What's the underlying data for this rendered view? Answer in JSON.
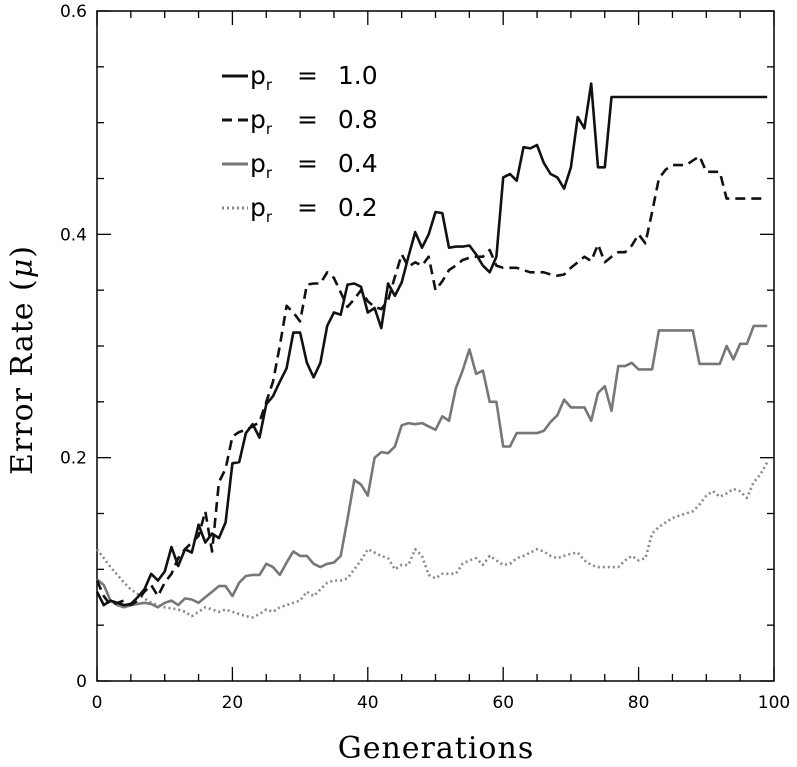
{
  "chart_data": {
    "type": "line",
    "title": "",
    "xlabel": "Generations",
    "ylabel_main": "Error Rate (",
    "ylabel_symbol": "μ",
    "ylabel_close": ")",
    "xlim": [
      0,
      100
    ],
    "ylim": [
      0,
      0.6
    ],
    "x_ticks": [
      0,
      20,
      40,
      60,
      80,
      100
    ],
    "x_tick_labels": [
      "0",
      "20",
      "40",
      "60",
      "80",
      "100"
    ],
    "y_ticks": [
      0,
      0.2,
      0.4,
      0.6
    ],
    "y_tick_labels": [
      "0",
      "0.2",
      "0.4",
      "0.6"
    ],
    "grid": false,
    "legend_position": "top-left",
    "legend_symbol": "p",
    "legend_subscript": "r",
    "series": [
      {
        "name": "p_r = 1.0",
        "label_main": "p",
        "label_sub": "r",
        "label_value": "= 1.0",
        "color": "#111111",
        "dash": "solid",
        "values": [
          0.08,
          0.068,
          0.072,
          0.07,
          0.068,
          0.069,
          0.075,
          0.082,
          0.096,
          0.09,
          0.098,
          0.12,
          0.103,
          0.118,
          0.115,
          0.14,
          0.124,
          0.132,
          0.128,
          0.142,
          0.195,
          0.196,
          0.222,
          0.23,
          0.218,
          0.248,
          0.255,
          0.268,
          0.28,
          0.312,
          0.312,
          0.285,
          0.272,
          0.285,
          0.318,
          0.33,
          0.328,
          0.355,
          0.356,
          0.353,
          0.33,
          0.334,
          0.316,
          0.356,
          0.345,
          0.357,
          0.38,
          0.402,
          0.388,
          0.4,
          0.42,
          0.419,
          0.388,
          0.389,
          0.389,
          0.39,
          0.382,
          0.372,
          0.366,
          0.38,
          0.451,
          0.454,
          0.448,
          0.478,
          0.477,
          0.48,
          0.464,
          0.454,
          0.451,
          0.441,
          0.46,
          0.505,
          0.495,
          0.535,
          0.46,
          0.46,
          0.523,
          0.523,
          0.523,
          0.523,
          0.523,
          0.523,
          0.523,
          0.523,
          0.523,
          0.523,
          0.523,
          0.523,
          0.523,
          0.523,
          0.523,
          0.523,
          0.523,
          0.523,
          0.523,
          0.523,
          0.523,
          0.523,
          0.523,
          0.523
        ]
      },
      {
        "name": "p_r = 0.8",
        "label_main": "p",
        "label_sub": "r",
        "label_value": "= 0.8",
        "color": "#111111",
        "dash": "dashed",
        "values": [
          0.09,
          0.076,
          0.068,
          0.07,
          0.072,
          0.068,
          0.072,
          0.08,
          0.086,
          0.076,
          0.088,
          0.096,
          0.11,
          0.118,
          0.124,
          0.13,
          0.152,
          0.116,
          0.178,
          0.19,
          0.219,
          0.223,
          0.225,
          0.228,
          0.232,
          0.25,
          0.268,
          0.3,
          0.336,
          0.33,
          0.322,
          0.355,
          0.356,
          0.356,
          0.366,
          0.361,
          0.348,
          0.335,
          0.342,
          0.35,
          0.34,
          0.335,
          0.333,
          0.341,
          0.362,
          0.382,
          0.371,
          0.375,
          0.372,
          0.38,
          0.35,
          0.358,
          0.368,
          0.372,
          0.377,
          0.379,
          0.38,
          0.38,
          0.386,
          0.372,
          0.37,
          0.37,
          0.37,
          0.368,
          0.366,
          0.366,
          0.366,
          0.364,
          0.363,
          0.364,
          0.37,
          0.375,
          0.38,
          0.376,
          0.391,
          0.375,
          0.38,
          0.384,
          0.384,
          0.39,
          0.4,
          0.392,
          0.42,
          0.45,
          0.458,
          0.462,
          0.462,
          0.462,
          0.466,
          0.47,
          0.456,
          0.456,
          0.456,
          0.432,
          0.432,
          0.432,
          0.432,
          0.432,
          0.432,
          0.432
        ]
      },
      {
        "name": "p_r = 0.4",
        "label_main": "p",
        "label_sub": "r",
        "label_value": "= 0.4",
        "color": "#777777",
        "dash": "solid",
        "values": [
          0.091,
          0.086,
          0.072,
          0.068,
          0.066,
          0.068,
          0.069,
          0.07,
          0.069,
          0.066,
          0.07,
          0.072,
          0.068,
          0.074,
          0.073,
          0.07,
          0.075,
          0.08,
          0.085,
          0.085,
          0.076,
          0.088,
          0.094,
          0.095,
          0.095,
          0.105,
          0.102,
          0.095,
          0.106,
          0.116,
          0.112,
          0.112,
          0.105,
          0.102,
          0.105,
          0.106,
          0.112,
          0.145,
          0.18,
          0.176,
          0.166,
          0.2,
          0.205,
          0.204,
          0.21,
          0.229,
          0.231,
          0.23,
          0.231,
          0.228,
          0.225,
          0.237,
          0.233,
          0.262,
          0.278,
          0.297,
          0.275,
          0.278,
          0.25,
          0.25,
          0.21,
          0.21,
          0.222,
          0.222,
          0.222,
          0.222,
          0.224,
          0.232,
          0.238,
          0.252,
          0.245,
          0.245,
          0.245,
          0.233,
          0.258,
          0.264,
          0.242,
          0.282,
          0.282,
          0.285,
          0.279,
          0.279,
          0.279,
          0.314,
          0.314,
          0.314,
          0.314,
          0.314,
          0.314,
          0.284,
          0.284,
          0.284,
          0.284,
          0.3,
          0.288,
          0.302,
          0.302,
          0.318,
          0.318,
          0.318
        ]
      },
      {
        "name": "p_r = 0.2",
        "label_main": "p",
        "label_sub": "r",
        "label_value": "= 0.2",
        "color": "#888888",
        "dash": "dotted",
        "values": [
          0.118,
          0.11,
          0.102,
          0.095,
          0.088,
          0.082,
          0.078,
          0.074,
          0.07,
          0.068,
          0.066,
          0.065,
          0.064,
          0.062,
          0.058,
          0.062,
          0.066,
          0.064,
          0.062,
          0.064,
          0.062,
          0.06,
          0.058,
          0.057,
          0.06,
          0.064,
          0.062,
          0.066,
          0.068,
          0.07,
          0.072,
          0.08,
          0.076,
          0.082,
          0.088,
          0.09,
          0.09,
          0.092,
          0.1,
          0.108,
          0.118,
          0.115,
          0.112,
          0.11,
          0.1,
          0.104,
          0.104,
          0.118,
          0.112,
          0.095,
          0.092,
          0.096,
          0.096,
          0.096,
          0.105,
          0.108,
          0.11,
          0.104,
          0.112,
          0.108,
          0.104,
          0.105,
          0.11,
          0.112,
          0.115,
          0.118,
          0.116,
          0.112,
          0.11,
          0.112,
          0.114,
          0.115,
          0.108,
          0.104,
          0.102,
          0.102,
          0.102,
          0.102,
          0.108,
          0.112,
          0.108,
          0.11,
          0.132,
          0.138,
          0.142,
          0.146,
          0.148,
          0.15,
          0.152,
          0.158,
          0.166,
          0.17,
          0.165,
          0.168,
          0.172,
          0.17,
          0.164,
          0.178,
          0.185,
          0.196
        ]
      }
    ]
  }
}
